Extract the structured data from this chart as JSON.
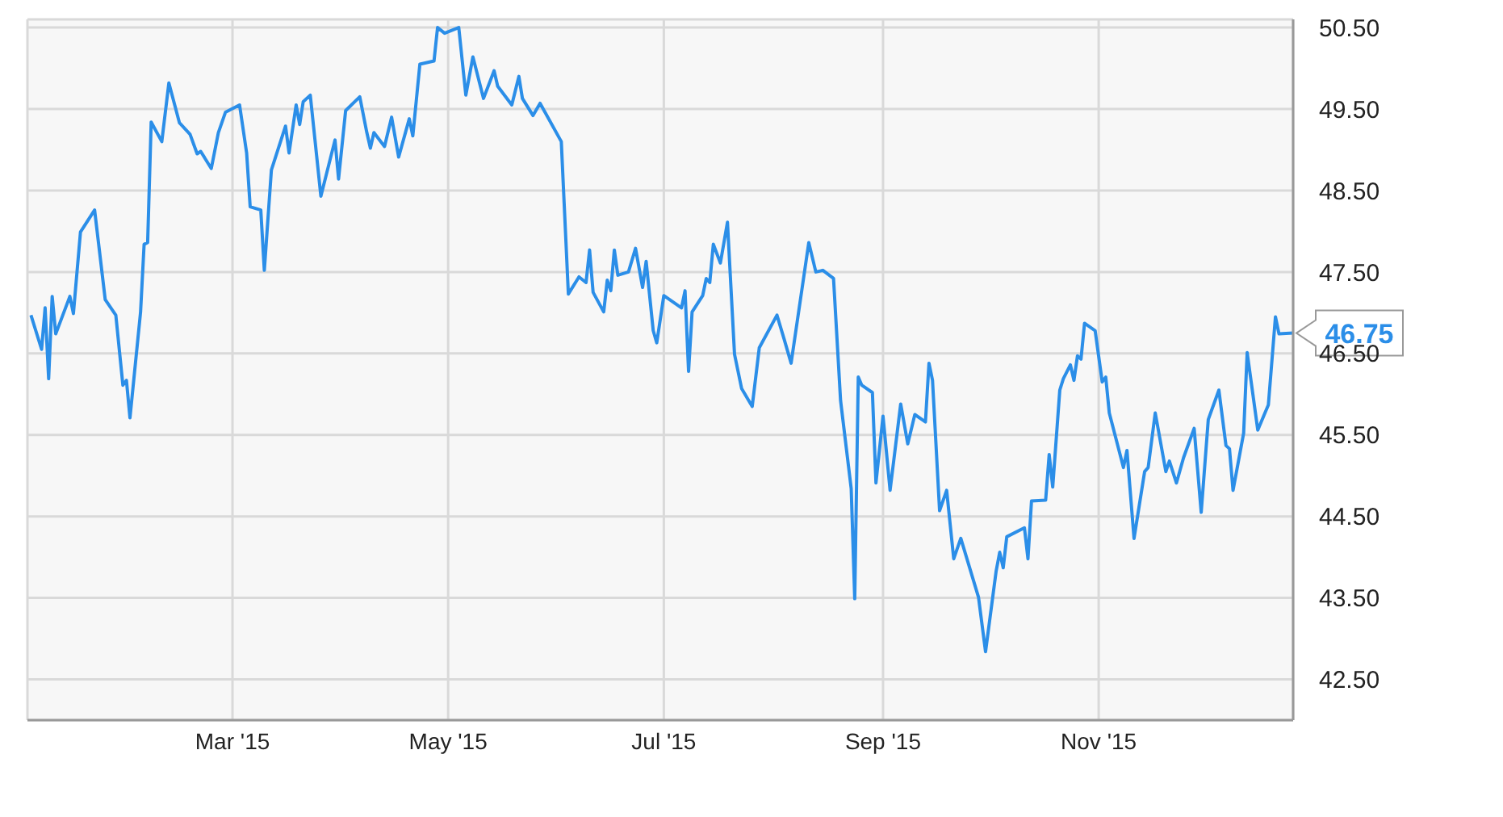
{
  "chart_data": {
    "type": "line",
    "x": [
      "2015-01-03",
      "2015-01-06",
      "2015-01-07",
      "2015-01-08",
      "2015-01-09",
      "2015-01-10",
      "2015-01-14",
      "2015-01-15",
      "2015-01-17",
      "2015-01-21",
      "2015-01-24",
      "2015-01-27",
      "2015-01-29",
      "2015-01-30",
      "2015-01-31",
      "2015-02-03",
      "2015-02-04",
      "2015-02-05",
      "2015-02-06",
      "2015-02-09",
      "2015-02-11",
      "2015-02-14",
      "2015-02-17",
      "2015-02-19",
      "2015-02-20",
      "2015-02-23",
      "2015-02-25",
      "2015-02-27",
      "2015-03-03",
      "2015-03-05",
      "2015-03-06",
      "2015-03-09",
      "2015-03-10",
      "2015-03-12",
      "2015-03-16",
      "2015-03-17",
      "2015-03-19",
      "2015-03-20",
      "2015-03-21",
      "2015-03-23",
      "2015-03-26",
      "2015-03-30",
      "2015-03-31",
      "2015-04-02",
      "2015-04-06",
      "2015-04-08",
      "2015-04-09",
      "2015-04-10",
      "2015-04-13",
      "2015-04-15",
      "2015-04-17",
      "2015-04-20",
      "2015-04-21",
      "2015-04-23",
      "2015-04-27",
      "2015-04-28",
      "2015-04-30",
      "2015-05-04",
      "2015-05-06",
      "2015-05-08",
      "2015-05-11",
      "2015-05-14",
      "2015-05-15",
      "2015-05-19",
      "2015-05-21",
      "2015-05-22",
      "2015-05-25",
      "2015-05-27",
      "2015-06-02",
      "2015-06-04",
      "2015-06-07",
      "2015-06-09",
      "2015-06-10",
      "2015-06-11",
      "2015-06-14",
      "2015-06-15",
      "2015-06-16",
      "2015-06-17",
      "2015-06-18",
      "2015-06-21",
      "2015-06-23",
      "2015-06-25",
      "2015-06-26",
      "2015-06-28",
      "2015-06-29",
      "2015-07-01",
      "2015-07-06",
      "2015-07-07",
      "2015-07-08",
      "2015-07-09",
      "2015-07-12",
      "2015-07-13",
      "2015-07-14",
      "2015-07-15",
      "2015-07-17",
      "2015-07-19",
      "2015-07-21",
      "2015-07-23",
      "2015-07-26",
      "2015-07-28",
      "2015-08-02",
      "2015-08-04",
      "2015-08-06",
      "2015-08-11",
      "2015-08-13",
      "2015-08-15",
      "2015-08-18",
      "2015-08-20",
      "2015-08-23",
      "2015-08-24",
      "2015-08-25",
      "2015-08-26",
      "2015-08-29",
      "2015-08-30",
      "2015-09-01",
      "2015-09-03",
      "2015-09-06",
      "2015-09-08",
      "2015-09-10",
      "2015-09-13",
      "2015-09-14",
      "2015-09-15",
      "2015-09-17",
      "2015-09-19",
      "2015-09-21",
      "2015-09-23",
      "2015-09-28",
      "2015-09-30",
      "2015-10-03",
      "2015-10-04",
      "2015-10-05",
      "2015-10-06",
      "2015-10-11",
      "2015-10-12",
      "2015-10-13",
      "2015-10-17",
      "2015-10-18",
      "2015-10-19",
      "2015-10-21",
      "2015-10-22",
      "2015-10-24",
      "2015-10-25",
      "2015-10-26",
      "2015-10-27",
      "2015-10-28",
      "2015-10-31",
      "2015-11-02",
      "2015-11-03",
      "2015-11-04",
      "2015-11-08",
      "2015-11-09",
      "2015-11-11",
      "2015-11-14",
      "2015-11-15",
      "2015-11-17",
      "2015-11-20",
      "2015-11-21",
      "2015-11-23",
      "2015-11-25",
      "2015-11-28",
      "2015-11-30",
      "2015-12-02",
      "2015-12-05",
      "2015-12-07",
      "2015-12-08",
      "2015-12-09",
      "2015-12-12",
      "2015-12-13",
      "2015-12-16",
      "2015-12-19",
      "2015-12-21",
      "2015-12-22",
      "2015-12-26"
    ],
    "series": [
      {
        "color": "#2b8ee8",
        "values": [
          46.97,
          46.55,
          47.06,
          46.19,
          47.2,
          46.74,
          47.2,
          46.99,
          47.99,
          48.26,
          47.16,
          46.97,
          46.11,
          46.17,
          45.71,
          47.01,
          47.84,
          47.86,
          49.34,
          49.1,
          49.82,
          49.33,
          49.19,
          48.95,
          48.98,
          48.77,
          49.21,
          49.46,
          49.55,
          48.96,
          48.3,
          48.26,
          47.52,
          48.75,
          49.29,
          48.96,
          49.55,
          49.31,
          49.59,
          49.67,
          48.43,
          49.12,
          48.64,
          49.48,
          49.65,
          49.21,
          49.02,
          49.21,
          49.04,
          49.4,
          48.91,
          49.38,
          49.17,
          50.05,
          50.09,
          50.5,
          50.43,
          50.5,
          49.67,
          50.14,
          49.63,
          49.97,
          49.78,
          49.55,
          49.9,
          49.63,
          49.42,
          49.57,
          49.1,
          47.23,
          47.44,
          47.37,
          47.77,
          47.25,
          47.01,
          47.4,
          47.27,
          47.77,
          47.46,
          47.5,
          47.79,
          47.31,
          47.63,
          46.78,
          46.63,
          47.21,
          47.06,
          47.27,
          46.28,
          47.01,
          47.21,
          47.42,
          47.37,
          47.84,
          47.61,
          48.11,
          46.49,
          46.07,
          45.85,
          46.57,
          46.97,
          46.68,
          46.38,
          47.86,
          47.5,
          47.52,
          47.42,
          45.92,
          44.84,
          43.49,
          46.21,
          46.11,
          46.02,
          44.91,
          45.73,
          44.82,
          45.88,
          45.39,
          45.75,
          45.66,
          46.38,
          46.17,
          44.57,
          44.82,
          43.98,
          44.23,
          43.51,
          42.84,
          43.83,
          44.06,
          43.87,
          44.25,
          44.36,
          43.98,
          44.69,
          44.7,
          45.26,
          44.86,
          46.05,
          46.19,
          46.36,
          46.17,
          46.47,
          46.43,
          46.87,
          46.78,
          46.15,
          46.21,
          45.77,
          45.1,
          45.31,
          44.23,
          45.05,
          45.1,
          45.77,
          45.05,
          45.18,
          44.91,
          45.22,
          45.58,
          44.55,
          45.69,
          46.05,
          45.37,
          45.33,
          44.82,
          45.52,
          46.51,
          45.56,
          45.87,
          46.95,
          46.74,
          46.75
        ]
      }
    ],
    "xlim": [
      "2015-01-02",
      "2015-12-26"
    ],
    "xticks": [
      {
        "value": "2015-03-01",
        "label": "Mar '15"
      },
      {
        "value": "2015-05-01",
        "label": "May '15"
      },
      {
        "value": "2015-07-01",
        "label": "Jul '15"
      },
      {
        "value": "2015-09-01",
        "label": "Sep '15"
      },
      {
        "value": "2015-11-01",
        "label": "Nov '15"
      }
    ],
    "ylim": [
      42,
      50.6
    ],
    "yticks": [
      {
        "value": 42.5,
        "label": "42.50"
      },
      {
        "value": 43.5,
        "label": "43.50"
      },
      {
        "value": 44.5,
        "label": "44.50"
      },
      {
        "value": 45.5,
        "label": "45.50"
      },
      {
        "value": 46.5,
        "label": "46.50"
      },
      {
        "value": 47.5,
        "label": "47.50"
      },
      {
        "value": 48.5,
        "label": "48.50"
      },
      {
        "value": 49.5,
        "label": "49.50"
      },
      {
        "value": 50.5,
        "label": "50.50"
      }
    ],
    "grid": true,
    "marker": "none",
    "annotations": [
      {
        "text": "46.75",
        "x": "2015-12-26",
        "y": 46.75
      }
    ]
  }
}
